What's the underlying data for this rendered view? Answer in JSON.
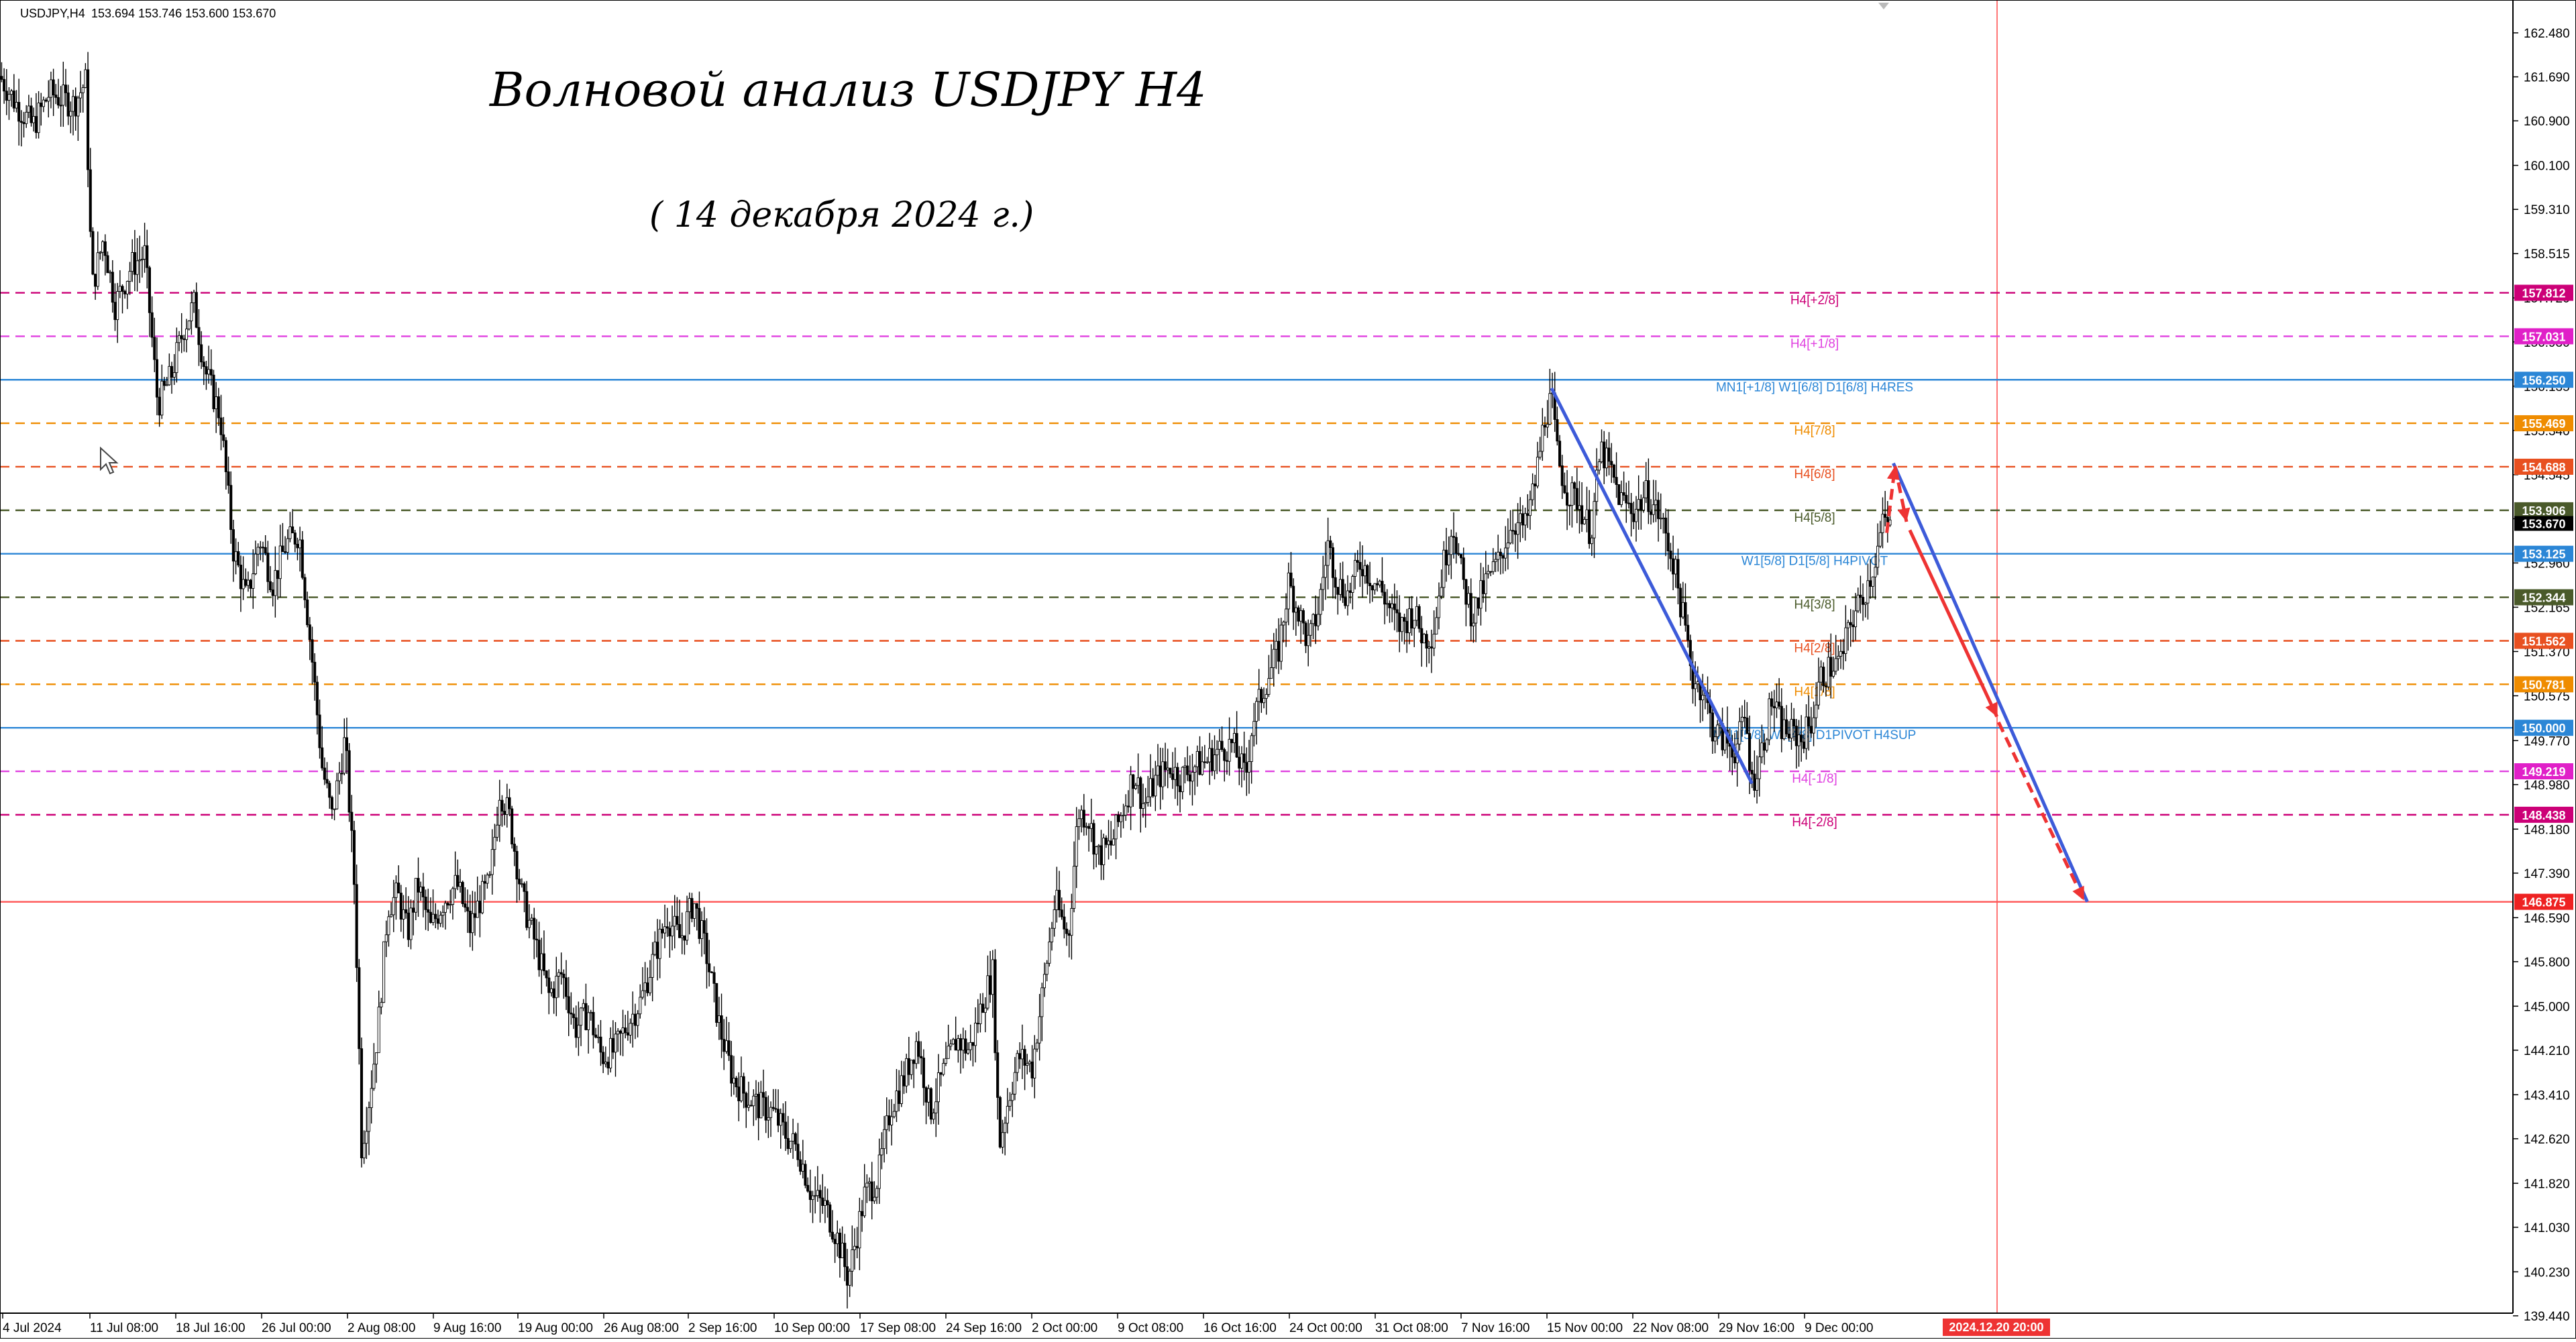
{
  "header": {
    "symbol": "USDJPY,H4",
    "ohlc": "153.694 153.746 153.600 153.670"
  },
  "annotations": {
    "title": "Волновой анализ USDJPY H4",
    "date": "( 14 декабря 2024 г.)"
  },
  "colors": {
    "candle": "#000000",
    "axis": "#000000",
    "blue_line": "#3d5bd9",
    "red_arrow": "#ee3333",
    "vline": "#ff5555"
  },
  "chart_data": {
    "type": "candlestick",
    "symbol": "USDJPY",
    "timeframe": "H4",
    "ylim": [
      139.03,
      163.07
    ],
    "y_ticks": [
      "162.480",
      "161.690",
      "160.900",
      "160.100",
      "159.310",
      "158.515",
      "157.720",
      "156.930",
      "156.135",
      "155.340",
      "154.545",
      "153.755",
      "152.960",
      "152.165",
      "151.370",
      "150.575",
      "149.770",
      "148.980",
      "148.180",
      "147.390",
      "146.590",
      "145.800",
      "145.000",
      "144.210",
      "143.410",
      "142.620",
      "141.820",
      "141.030",
      "140.230",
      "139.440"
    ],
    "x_labels": [
      "4 Jul 2024",
      "11 Jul 08:00",
      "18 Jul 16:00",
      "26 Jul 00:00",
      "2 Aug 08:00",
      "9 Aug 16:00",
      "19 Aug 00:00",
      "26 Aug 08:00",
      "2 Sep 16:00",
      "10 Sep 00:00",
      "17 Sep 08:00",
      "24 Sep 16:00",
      "2 Oct 00:00",
      "9 Oct 08:00",
      "16 Oct 16:00",
      "24 Oct 00:00",
      "31 Oct 08:00",
      "7 Nov 16:00",
      "15 Nov 00:00",
      "22 Nov 08:00",
      "29 Nov 16:00",
      "9 Dec 00:00"
    ],
    "cursor_time_label": "2024.12.20 20:00",
    "current_price": "153.670",
    "price_path": [
      [
        0,
        161.7
      ],
      [
        10,
        161.2
      ],
      [
        20,
        160.8
      ],
      [
        30,
        161.4
      ],
      [
        45,
        161.2
      ],
      [
        52,
        161.6
      ],
      [
        56,
        157.9
      ],
      [
        63,
        158.8
      ],
      [
        70,
        157.6
      ],
      [
        80,
        158.3
      ],
      [
        88,
        158.5
      ],
      [
        96,
        155.8
      ],
      [
        104,
        156.3
      ],
      [
        112,
        157.2
      ],
      [
        118,
        157.6
      ],
      [
        125,
        156.4
      ],
      [
        134,
        155.6
      ],
      [
        142,
        153.2
      ],
      [
        150,
        152.3
      ],
      [
        158,
        153.4
      ],
      [
        166,
        152.6
      ],
      [
        174,
        153.3
      ],
      [
        182,
        153.5
      ],
      [
        190,
        151.2
      ],
      [
        196,
        149.3
      ],
      [
        202,
        148.4
      ],
      [
        210,
        149.8
      ],
      [
        216,
        147.0
      ],
      [
        220,
        142.5
      ],
      [
        224,
        143.2
      ],
      [
        230,
        144.6
      ],
      [
        236,
        146.8
      ],
      [
        242,
        147.0
      ],
      [
        248,
        146.3
      ],
      [
        254,
        147.2
      ],
      [
        262,
        146.4
      ],
      [
        270,
        146.9
      ],
      [
        278,
        147.2
      ],
      [
        286,
        146.4
      ],
      [
        292,
        146.9
      ],
      [
        298,
        147.2
      ],
      [
        304,
        148.9
      ],
      [
        310,
        148.4
      ],
      [
        318,
        146.9
      ],
      [
        326,
        146.1
      ],
      [
        334,
        145.2
      ],
      [
        342,
        145.6
      ],
      [
        350,
        144.6
      ],
      [
        358,
        144.9
      ],
      [
        366,
        144.1
      ],
      [
        374,
        144.2
      ],
      [
        382,
        144.7
      ],
      [
        390,
        145.1
      ],
      [
        398,
        145.9
      ],
      [
        406,
        146.6
      ],
      [
        414,
        146.2
      ],
      [
        422,
        146.9
      ],
      [
        430,
        145.9
      ],
      [
        438,
        144.6
      ],
      [
        446,
        143.7
      ],
      [
        454,
        143.4
      ],
      [
        462,
        143.2
      ],
      [
        470,
        143.1
      ],
      [
        478,
        142.7
      ],
      [
        486,
        142.4
      ],
      [
        494,
        141.6
      ],
      [
        502,
        141.4
      ],
      [
        510,
        140.8
      ],
      [
        516,
        140.1
      ],
      [
        520,
        140.7
      ],
      [
        526,
        141.6
      ],
      [
        534,
        141.9
      ],
      [
        542,
        143.2
      ],
      [
        550,
        143.7
      ],
      [
        558,
        144.4
      ],
      [
        566,
        143.1
      ],
      [
        574,
        143.8
      ],
      [
        582,
        144.4
      ],
      [
        590,
        144.2
      ],
      [
        598,
        145.1
      ],
      [
        604,
        145.6
      ],
      [
        608,
        142.5
      ],
      [
        614,
        143.4
      ],
      [
        620,
        144.1
      ],
      [
        628,
        143.9
      ],
      [
        636,
        145.6
      ],
      [
        642,
        146.9
      ],
      [
        650,
        146.2
      ],
      [
        656,
        148.5
      ],
      [
        662,
        148.4
      ],
      [
        668,
        147.7
      ],
      [
        676,
        147.9
      ],
      [
        684,
        148.6
      ],
      [
        690,
        149.2
      ],
      [
        696,
        148.6
      ],
      [
        704,
        149.1
      ],
      [
        712,
        149.3
      ],
      [
        718,
        149.1
      ],
      [
        726,
        149.3
      ],
      [
        734,
        149.4
      ],
      [
        742,
        149.6
      ],
      [
        750,
        149.7
      ],
      [
        758,
        149.1
      ],
      [
        762,
        150.1
      ],
      [
        770,
        150.8
      ],
      [
        778,
        151.4
      ],
      [
        784,
        152.6
      ],
      [
        790,
        152.1
      ],
      [
        796,
        151.5
      ],
      [
        802,
        152.1
      ],
      [
        808,
        153.3
      ],
      [
        814,
        152.6
      ],
      [
        820,
        152.4
      ],
      [
        828,
        153.0
      ],
      [
        834,
        152.7
      ],
      [
        840,
        152.5
      ],
      [
        846,
        152.1
      ],
      [
        852,
        151.8
      ],
      [
        860,
        152.1
      ],
      [
        866,
        151.6
      ],
      [
        872,
        151.7
      ],
      [
        878,
        152.9
      ],
      [
        884,
        153.7
      ],
      [
        890,
        152.6
      ],
      [
        896,
        152.0
      ],
      [
        904,
        152.6
      ],
      [
        912,
        153.0
      ],
      [
        920,
        153.7
      ],
      [
        928,
        153.6
      ],
      [
        934,
        154.4
      ],
      [
        940,
        155.6
      ],
      [
        944,
        155.9
      ],
      [
        948,
        154.8
      ],
      [
        954,
        154.2
      ],
      [
        960,
        154.1
      ],
      [
        968,
        153.5
      ],
      [
        974,
        155.0
      ],
      [
        980,
        154.6
      ],
      [
        986,
        154.1
      ],
      [
        994,
        153.9
      ],
      [
        1002,
        154.2
      ],
      [
        1010,
        153.8
      ],
      [
        1018,
        153.0
      ],
      [
        1024,
        152.0
      ],
      [
        1030,
        150.9
      ],
      [
        1036,
        150.7
      ],
      [
        1042,
        150.0
      ],
      [
        1048,
        149.8
      ],
      [
        1056,
        149.6
      ],
      [
        1062,
        150.2
      ],
      [
        1066,
        149.0
      ],
      [
        1072,
        149.6
      ],
      [
        1078,
        150.5
      ],
      [
        1084,
        150.0
      ],
      [
        1090,
        149.9
      ],
      [
        1096,
        149.8
      ],
      [
        1102,
        150.1
      ],
      [
        1108,
        150.9
      ],
      [
        1114,
        151.1
      ],
      [
        1120,
        151.2
      ],
      [
        1126,
        151.9
      ],
      [
        1134,
        152.4
      ],
      [
        1140,
        152.9
      ],
      [
        1146,
        153.7
      ],
      [
        1150,
        153.6
      ]
    ],
    "levels": [
      {
        "label": "H4[+2/8]",
        "price": 157.812,
        "tag": "157.812",
        "color": "#cc0077",
        "dash": true,
        "tag_bg": "#cc0077"
      },
      {
        "label": "H4[+1/8]",
        "price": 157.031,
        "tag": "157.031",
        "color": "#e040e0",
        "dash": true,
        "tag_bg": "#e020c8"
      },
      {
        "label": "MN1[+1/8] W1[6/8] D1[6/8] H4RES",
        "price": 156.25,
        "tag": "156.250",
        "color": "#2b86d6",
        "dash": false,
        "tag_bg": "#2b86d6"
      },
      {
        "label": "H4[7/8]",
        "price": 155.469,
        "tag": "155.469",
        "color": "#ef8c00",
        "dash": true,
        "tag_bg": "#ef8c00"
      },
      {
        "label": "H4[6/8]",
        "price": 154.688,
        "tag": "154.688",
        "color": "#e85020",
        "dash": true,
        "tag_bg": "#e85020"
      },
      {
        "label": "H4[5/8]",
        "price": 153.906,
        "tag": "153.906",
        "color": "#4a5a2a",
        "dash": true,
        "tag_bg": "#4a5a2a"
      },
      {
        "label": "W1[5/8] D1[5/8] H4PIVOT",
        "price": 153.125,
        "tag": "153.125",
        "color": "#2b86d6",
        "dash": false,
        "tag_bg": "#2b86d6"
      },
      {
        "label": "H4[3/8]",
        "price": 152.344,
        "tag": "152.344",
        "color": "#4a5a2a",
        "dash": true,
        "tag_bg": "#4a5a2a"
      },
      {
        "label": "H4[2/8]",
        "price": 151.562,
        "tag": "151.562",
        "color": "#e85020",
        "dash": true,
        "tag_bg": "#e85020"
      },
      {
        "label": "H4[1/8]",
        "price": 150.781,
        "tag": "150.781",
        "color": "#ef8c00",
        "dash": true,
        "tag_bg": "#ef8c00"
      },
      {
        "label": "MN1[5/8] W1[4/8] D1PIVOT H4SUP",
        "price": 150.0,
        "tag": "150.000",
        "color": "#2b86d6",
        "dash": false,
        "tag_bg": "#2b86d6"
      },
      {
        "label": "H4[-1/8]",
        "price": 149.219,
        "tag": "149.219",
        "color": "#e040e0",
        "dash": true,
        "tag_bg": "#e020c8"
      },
      {
        "label": "H4[-2/8]",
        "price": 148.438,
        "tag": "148.438",
        "color": "#cc0077",
        "dash": true,
        "tag_bg": "#cc0077"
      },
      {
        "label": "",
        "price": 146.875,
        "tag": "146.875",
        "color": "#ff5555",
        "dash": false,
        "tag_bg": "#ee2222"
      }
    ]
  }
}
